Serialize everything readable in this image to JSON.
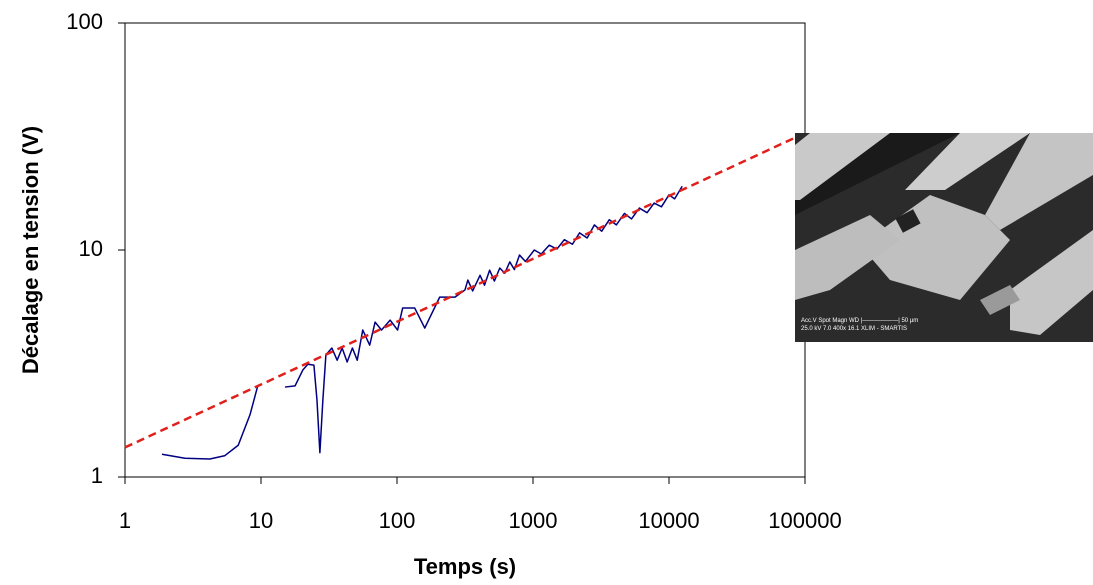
{
  "chart_data": {
    "type": "line",
    "xlabel": "Temps (s)",
    "ylabel": "Décalage en tension (V)",
    "xscale": "log",
    "yscale": "log",
    "xlim": [
      1,
      100000
    ],
    "ylim": [
      1,
      100
    ],
    "xticks": [
      1,
      10,
      100,
      1000,
      10000,
      100000
    ],
    "yticks": [
      1,
      10,
      100
    ],
    "grid": false,
    "series": [
      {
        "color": "#000080",
        "style": "solid",
        "x": [
          1.87,
          2.76,
          4.2,
          5.4,
          6.8,
          8.3,
          9.5,
          12,
          15,
          17.8,
          20.3,
          22.1,
          24.5,
          25.8,
          27.1,
          28.5,
          30,
          33.2,
          36.3,
          39.5,
          43,
          47,
          51,
          56,
          63,
          69,
          77,
          89,
          101,
          110,
          135,
          160,
          206,
          267,
          316,
          332,
          360,
          408,
          440,
          480,
          520,
          570,
          620,
          675,
          730,
          796,
          880,
          1022,
          1150,
          1315,
          1500,
          1700,
          1950,
          2200,
          2500,
          2830,
          3200,
          3640,
          4100,
          4700,
          5300,
          6050,
          6900,
          7780,
          8800,
          10000,
          11000,
          12500
        ],
        "values": [
          1.26,
          1.21,
          1.2,
          1.24,
          1.38,
          1.88,
          2.54,
          null,
          2.49,
          2.52,
          2.96,
          3.14,
          3.11,
          2.18,
          1.28,
          2.18,
          3.45,
          3.7,
          3.27,
          3.7,
          3.21,
          3.7,
          3.27,
          4.44,
          3.81,
          4.81,
          4.44,
          4.91,
          4.44,
          5.55,
          5.55,
          4.53,
          6.2,
          6.2,
          6.67,
          7.37,
          6.6,
          7.74,
          7.0,
          8.15,
          7.3,
          8.33,
          7.9,
          8.86,
          8.2,
          9.5,
          8.9,
          10,
          9.6,
          10.5,
          10.1,
          11.1,
          10.6,
          11.9,
          11.3,
          12.9,
          12.1,
          13.6,
          12.9,
          14.5,
          13.7,
          15.3,
          14.6,
          16.1,
          15.5,
          17.5,
          16.8,
          19.1
        ]
      },
      {
        "color": "#e0201b",
        "style": "dashed",
        "x": [
          1,
          87000
        ],
        "values": [
          1.35,
          31.5
        ]
      }
    ],
    "inset_text": [
      "Acc.V   Spot Magn     WD  |——————|  50 µm",
      "25.0 kV 7.0   400x     16.1  XLIM - SMARTIS"
    ]
  }
}
